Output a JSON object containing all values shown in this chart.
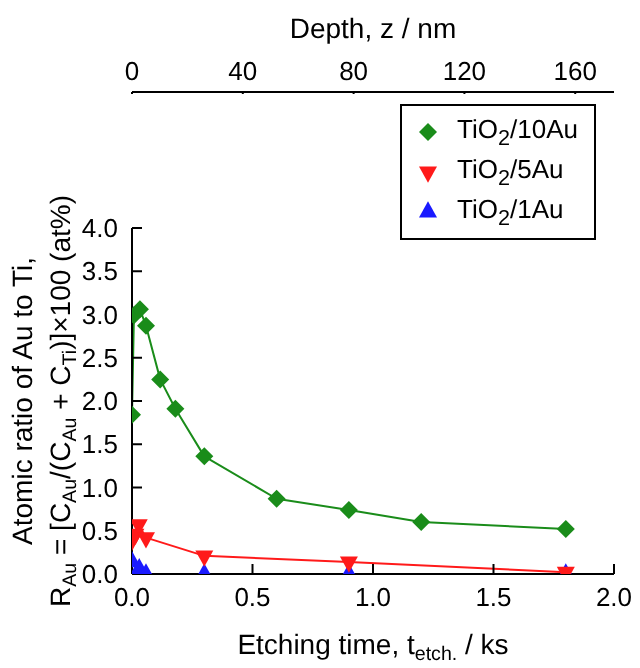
{
  "chart_data": {
    "type": "line",
    "xlabel": "Etching time, t$_{etch.}$ / ks",
    "x2label": "Depth, z / nm",
    "ylabel": "Atomic ratio of Au to Ti,\nR$_{Au}$ = [C$_{Au}$/(C$_{Au}$ + C$_{Ti}$)]×100 (at%)",
    "xlim": [
      0,
      2.0
    ],
    "xticks": [
      {
        "value": 0,
        "label": "0.0"
      },
      {
        "value": 0.5,
        "label": "0.5"
      },
      {
        "value": 1,
        "label": "1.0"
      },
      {
        "value": 1.5,
        "label": "1.5"
      },
      {
        "value": 2,
        "label": "2.0"
      }
    ],
    "x2lim": [
      0,
      174
    ],
    "x2ticks": [
      0,
      40,
      80,
      120,
      160
    ],
    "ylim": [
      0,
      4.0
    ],
    "yticks": [
      {
        "value": 0,
        "label": "0.0"
      },
      {
        "value": 0.5,
        "label": "0.5"
      },
      {
        "value": 1,
        "label": "1.0"
      },
      {
        "value": 1.5,
        "label": "1.5"
      },
      {
        "value": 2,
        "label": "2.0"
      },
      {
        "value": 2.5,
        "label": "2.5"
      },
      {
        "value": 3,
        "label": "3.0"
      },
      {
        "value": 3.5,
        "label": "3.5"
      },
      {
        "value": 4,
        "label": "4.0"
      }
    ],
    "legend": "top right",
    "grid": false,
    "series": [
      {
        "name": "TiO$_{2}$/10Au",
        "color": "#1a8c1a",
        "marker": "diamond",
        "x": [
          0,
          0.008,
          0.033,
          0.058,
          0.117,
          0.18,
          0.3,
          0.6,
          0.9,
          1.2,
          1.8
        ],
        "values": [
          1.84,
          2.99,
          3.06,
          2.87,
          2.25,
          1.91,
          1.36,
          0.87,
          0.74,
          0.6,
          0.52
        ]
      },
      {
        "name": "TiO$_{2}$/5Au",
        "color": "#ff1a1a",
        "marker": "triangle-down",
        "x": [
          0,
          0.014,
          0.028,
          0.058,
          0.3,
          0.9,
          1.8
        ],
        "values": [
          0.39,
          0.46,
          0.57,
          0.42,
          0.21,
          0.14,
          0.02
        ]
      },
      {
        "name": "TiO$_{2}$/1Au",
        "type": "scatter",
        "color": "#1a1aff",
        "marker": "triangle",
        "x": [
          0,
          0.03,
          0.058,
          0.3,
          0.9,
          1.8
        ],
        "values": [
          0.14,
          0.06,
          0.0,
          0.0,
          0.0,
          0.0
        ]
      }
    ]
  }
}
